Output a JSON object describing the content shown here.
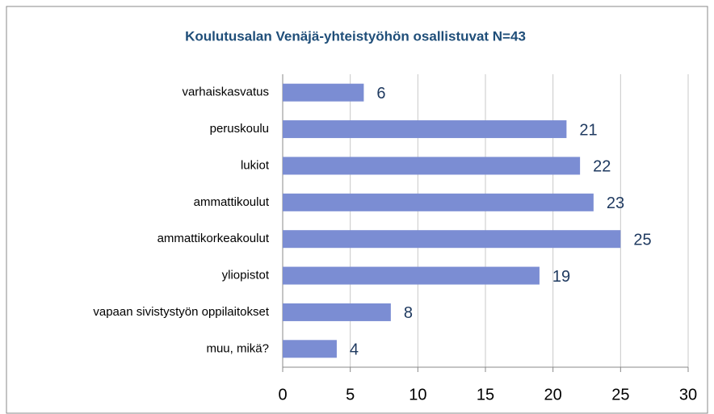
{
  "chart_data": {
    "type": "bar",
    "orientation": "horizontal",
    "title": "Koulutusalan Venäjä-yhteistyöhön osallistuvat N=43",
    "categories": [
      "varhaiskasvatus",
      "peruskoulu",
      "lukiot",
      "ammattikoulut",
      "ammattikorkeakoulut",
      "yliopistot",
      "vapaan sivistystyön oppilaitokset",
      "muu, mikä?"
    ],
    "values": [
      6,
      21,
      22,
      23,
      25,
      19,
      8,
      4
    ],
    "color": "#7b8dd3",
    "xlim": [
      0,
      30
    ],
    "xticks": [
      0,
      5,
      10,
      15,
      20,
      25,
      30
    ],
    "grid": true
  }
}
